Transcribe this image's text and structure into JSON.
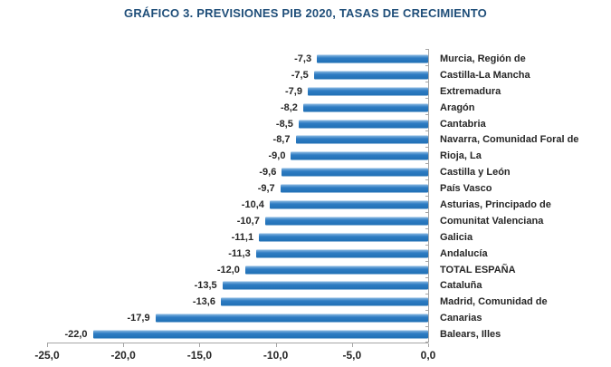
{
  "header": {
    "title": "GRÁFICO 3. PREVISIONES PIB 2020, TASAS DE CRECIMIENTO"
  },
  "chart_data": {
    "type": "bar",
    "orientation": "horizontal",
    "title": "GRÁFICO 3. PREVISIONES PIB 2020, TASAS DE CRECIMIENTO",
    "categories": [
      "Murcia, Región de",
      "Castilla-La Mancha",
      "Extremadura",
      "Aragón",
      "Cantabria",
      "Navarra, Comunidad Foral de",
      "Rioja, La",
      "Castilla y León",
      "País Vasco",
      "Asturias, Principado de",
      "Comunitat Valenciana",
      "Galicia",
      "Andalucía",
      "TOTAL ESPAÑA",
      "Cataluña",
      "Madrid, Comunidad de",
      "Canarias",
      "Balears, Illes"
    ],
    "values": [
      -7.3,
      -7.5,
      -7.9,
      -8.2,
      -8.5,
      -8.7,
      -9.0,
      -9.6,
      -9.7,
      -10.4,
      -10.7,
      -11.1,
      -11.3,
      -12.0,
      -13.5,
      -13.6,
      -17.9,
      -22.0
    ],
    "value_labels": [
      "-7,3",
      "-7,5",
      "-7,9",
      "-8,2",
      "-8,5",
      "-8,7",
      "-9,0",
      "-9,6",
      "-9,7",
      "-10,4",
      "-10,7",
      "-11,1",
      "-11,3",
      "-12,0",
      "-13,5",
      "-13,6",
      "-17,9",
      "-22,0"
    ],
    "xlabel": "",
    "ylabel": "",
    "xlim": [
      -25,
      0
    ],
    "xtick_labels": [
      "-25,0",
      "-20,0",
      "-15,0",
      "-10,0",
      "-5,0",
      "0,0"
    ],
    "grid": false,
    "legend": false,
    "colors": {
      "title": "#1F4E79",
      "bar": "#2E7CC3",
      "bar_light": "#8AB9E2",
      "bar_dark": "#1F6FB4",
      "axis": "#A6A6A6",
      "text": "#262626"
    }
  }
}
